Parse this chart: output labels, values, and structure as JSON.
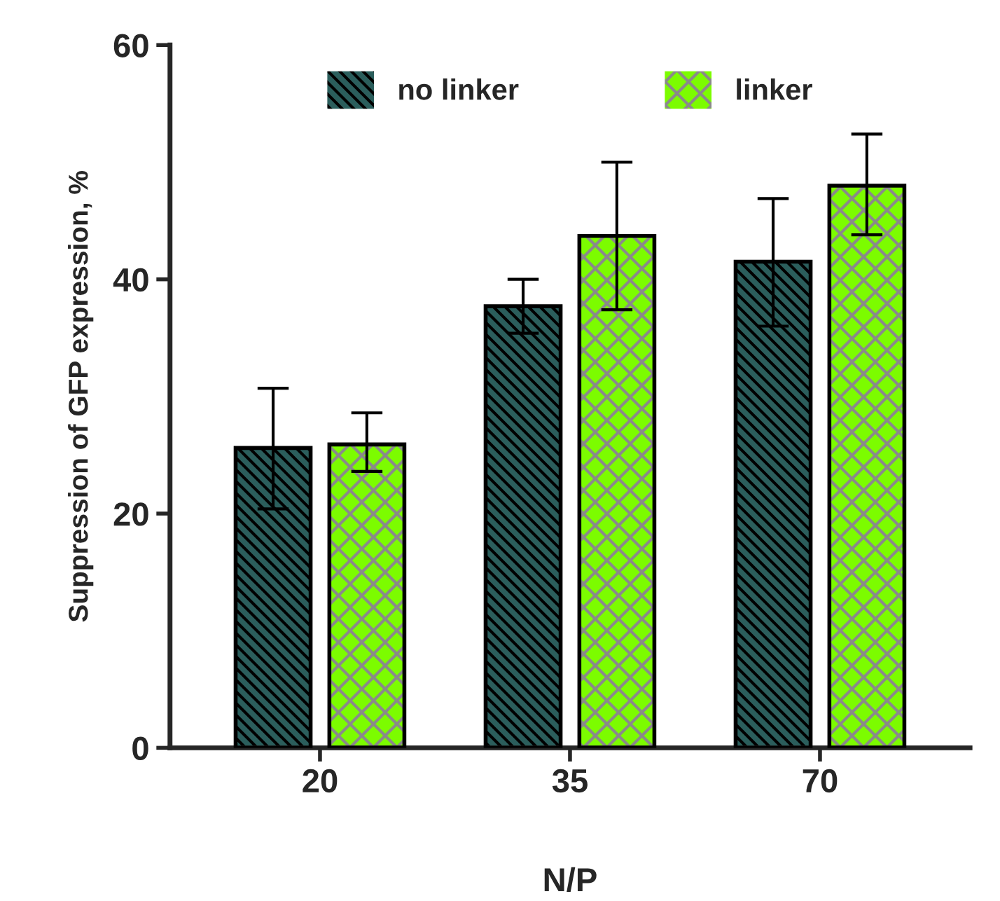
{
  "chart_data": {
    "type": "bar",
    "xlabel": "N/P",
    "ylabel": "Suppression of GFP expression, %",
    "categories": [
      "20",
      "35",
      "70"
    ],
    "series": [
      {
        "name": "no linker",
        "color": "#2b5e5c",
        "values": [
          25.6,
          37.7,
          41.5
        ],
        "errors": [
          [
            20.4,
            30.7
          ],
          [
            35.4,
            40.0
          ],
          [
            36.0,
            46.9
          ]
        ]
      },
      {
        "name": "linker",
        "color": "#7cfc00",
        "values": [
          25.9,
          43.7,
          48.0
        ],
        "errors": [
          [
            23.6,
            28.6
          ],
          [
            37.4,
            50.0
          ],
          [
            43.8,
            52.4
          ]
        ]
      }
    ],
    "ylim": [
      0,
      60
    ],
    "yticks": [
      0,
      20,
      40,
      60
    ],
    "grid": false,
    "legend": "top"
  }
}
